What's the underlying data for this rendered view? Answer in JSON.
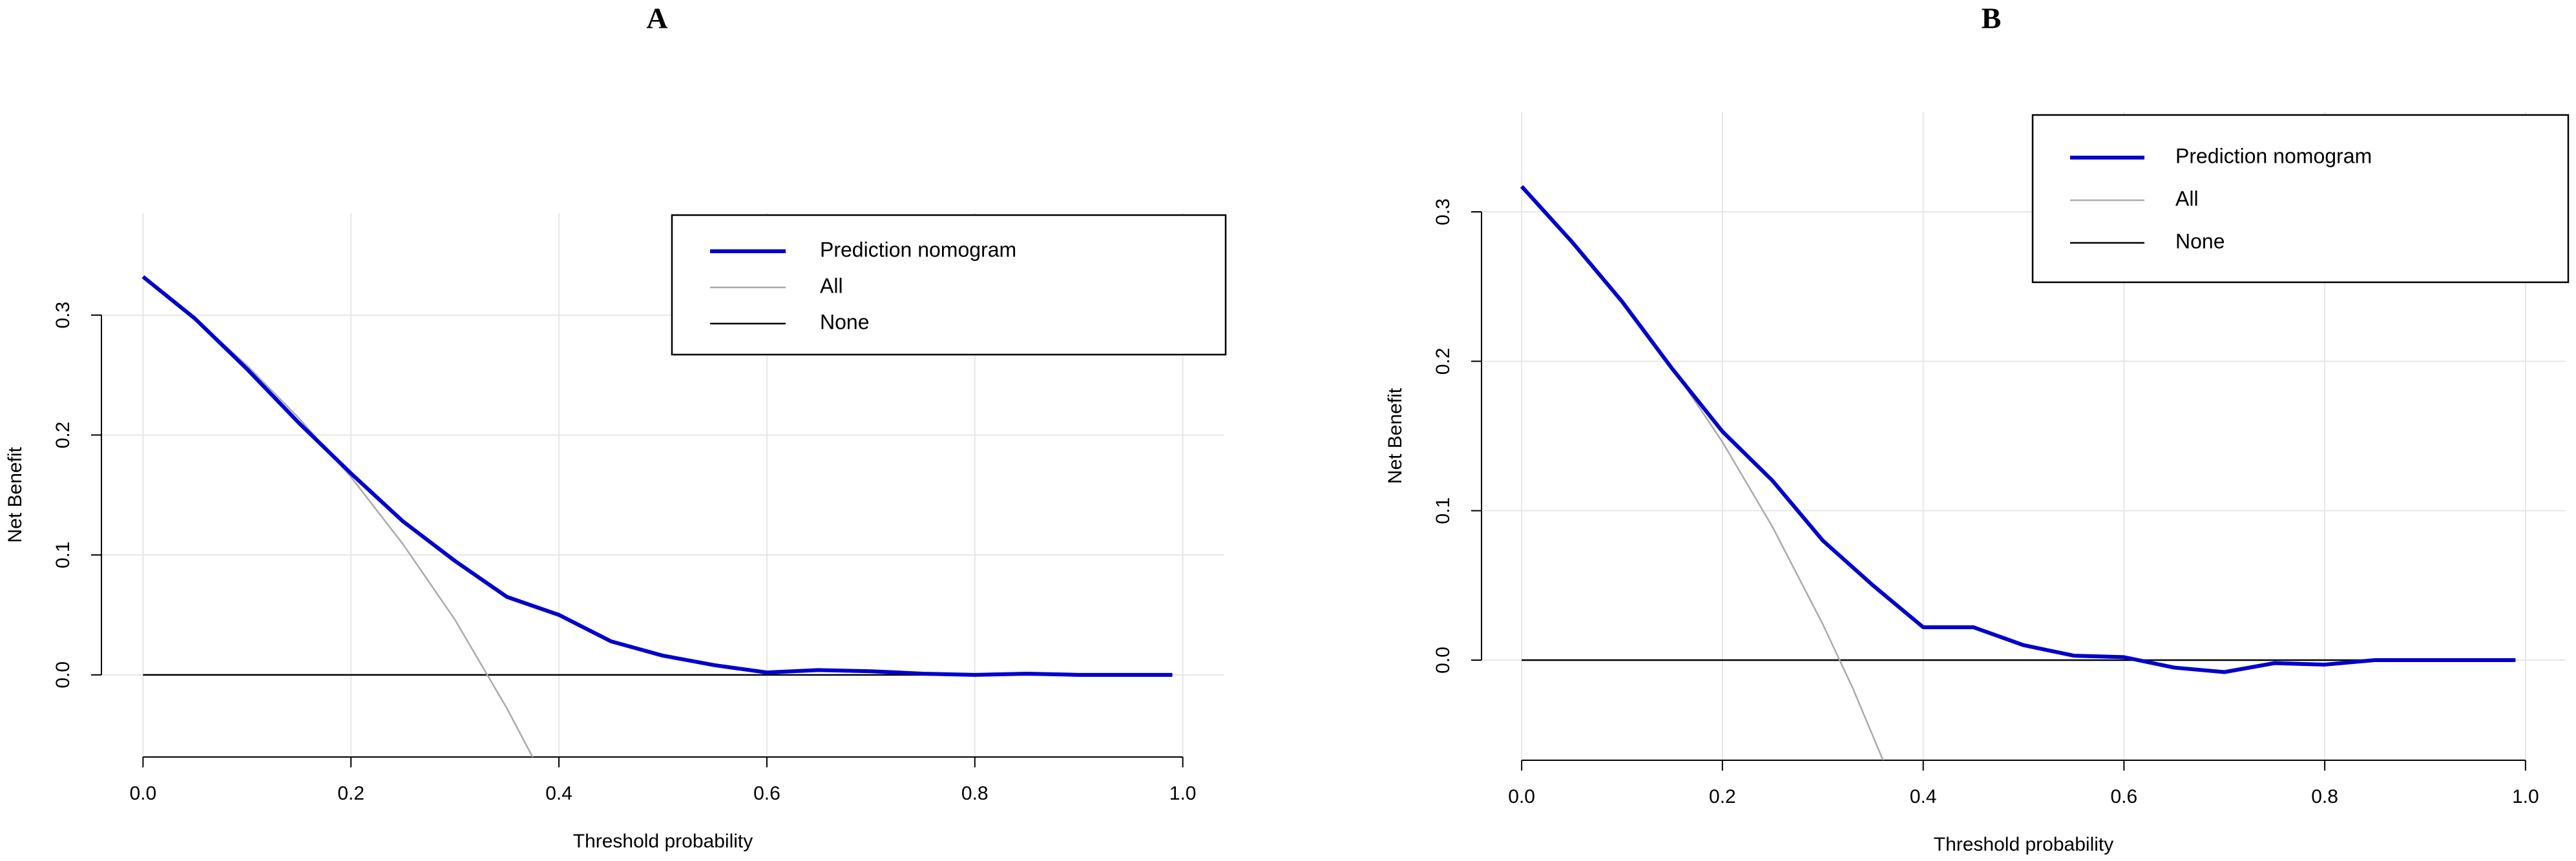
{
  "chart_data": [
    {
      "type": "line",
      "title": "A",
      "x_label": "Threshold probability",
      "y_label": "Net Benefit",
      "xlim": [
        -0.04,
        1.04
      ],
      "ylim": [
        -0.0685,
        0.385
      ],
      "xticks": [
        {
          "value": 0,
          "label": "0.0"
        },
        0.2,
        0.4,
        0.6,
        0.8,
        {
          "value": 1,
          "label": "1.0"
        }
      ],
      "yticks": [
        {
          "value": 0,
          "label": "0.0"
        },
        0.1,
        0.2,
        0.3
      ],
      "grid": true,
      "legend": "top right",
      "series": [
        {
          "name": "Prediction nomogram",
          "color": "#0000cd",
          "x": [
            0,
            0.05,
            0.1,
            0.15,
            0.2,
            0.25,
            0.3,
            0.35,
            0.4,
            0.45,
            0.5,
            0.55,
            0.6,
            0.65,
            0.7,
            0.75,
            0.8,
            0.85,
            0.9,
            0.95,
            0.99
          ],
          "values": [
            0.332,
            0.297,
            0.255,
            0.21,
            0.168,
            0.128,
            0.095,
            0.065,
            0.05,
            0.028,
            0.016,
            0.008,
            0.002,
            0.004,
            0.003,
            0.001,
            0.0,
            0.001,
            0,
            0,
            0
          ]
        },
        {
          "name": "All",
          "color": "#aaaaaa",
          "x": [
            0,
            0.05,
            0.1,
            0.15,
            0.2,
            0.25,
            0.3,
            0.35,
            0.375
          ],
          "values": [
            0.332,
            0.297,
            0.258,
            0.214,
            0.165,
            0.109,
            0.046,
            -0.028,
            -0.069
          ]
        },
        {
          "name": "None",
          "color": "#000000",
          "x": [
            0,
            0.99
          ],
          "values": [
            0,
            0
          ]
        }
      ]
    },
    {
      "type": "line",
      "title": "B",
      "x_label": "Threshold probability",
      "y_label": "Net Benefit",
      "xlim": [
        -0.04,
        1.04
      ],
      "ylim": [
        -0.067,
        0.367
      ],
      "xticks": [
        {
          "value": 0,
          "label": "0.0"
        },
        0.2,
        0.4,
        0.6,
        0.8,
        {
          "value": 1,
          "label": "1.0"
        }
      ],
      "yticks": [
        {
          "value": 0,
          "label": "0.0"
        },
        0.1,
        0.2,
        0.3
      ],
      "grid": true,
      "legend": "top right",
      "series": [
        {
          "name": "Prediction nomogram",
          "color": "#0000cd",
          "x": [
            0,
            0.05,
            0.1,
            0.15,
            0.2,
            0.25,
            0.3,
            0.35,
            0.4,
            0.45,
            0.5,
            0.55,
            0.6,
            0.65,
            0.7,
            0.75,
            0.8,
            0.85,
            0.9,
            0.95,
            0.99
          ],
          "values": [
            0.317,
            0.28,
            0.24,
            0.195,
            0.153,
            0.12,
            0.08,
            0.05,
            0.022,
            0.022,
            0.01,
            0.003,
            0.002,
            -0.005,
            -0.008,
            -0.002,
            -0.003,
            0,
            0,
            0,
            0
          ]
        },
        {
          "name": "All",
          "color": "#aaaaaa",
          "x": [
            0,
            0.05,
            0.1,
            0.15,
            0.2,
            0.25,
            0.3,
            0.33,
            0.36
          ],
          "values": [
            0.317,
            0.281,
            0.241,
            0.196,
            0.146,
            0.089,
            0.024,
            -0.019,
            -0.067
          ]
        },
        {
          "name": "None",
          "color": "#000000",
          "x": [
            0,
            0.99
          ],
          "values": [
            0,
            0
          ]
        }
      ]
    }
  ]
}
